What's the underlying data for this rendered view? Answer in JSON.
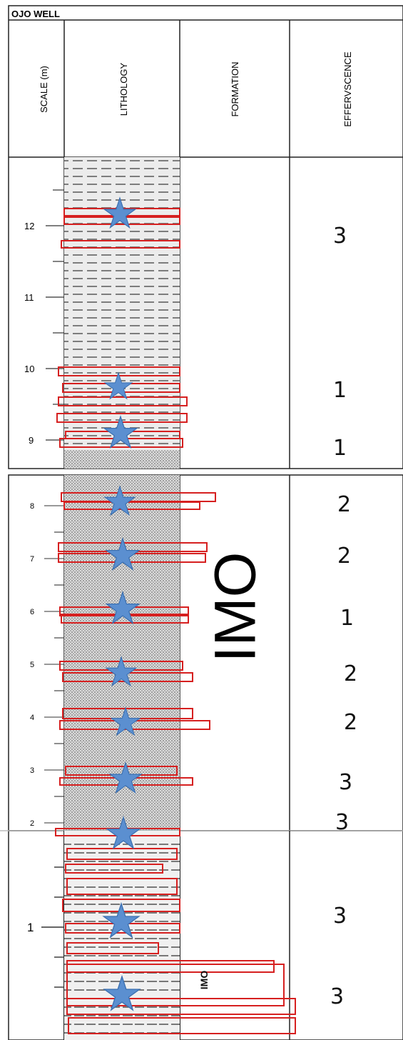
{
  "title": "OJO WELL",
  "headers": {
    "scale": "SCALE (m)",
    "lithology": "LITHOLOGY",
    "formation": "FORMATION",
    "effervescence": "EFFERVSCENCE"
  },
  "formation_big": "IMO",
  "formation_small": "IMO",
  "segments": [
    {
      "name": "upper",
      "ticks": [
        {
          "label": "12"
        },
        {
          "label": "11"
        },
        {
          "label": "10"
        },
        {
          "label": "9"
        }
      ]
    },
    {
      "name": "middle",
      "ticks": [
        {
          "label": "8"
        },
        {
          "label": "7"
        },
        {
          "label": "6"
        },
        {
          "label": "5"
        },
        {
          "label": "4"
        },
        {
          "label": "3"
        },
        {
          "label": "2"
        }
      ]
    },
    {
      "name": "lower",
      "ticks": [
        {
          "label": "1"
        }
      ]
    }
  ],
  "effervescence_values": [
    "3",
    "1",
    "1",
    "2",
    "2",
    "1",
    "2",
    "2",
    "3",
    "3",
    "3",
    "3"
  ],
  "colors": {
    "sample_box": "#d62020",
    "star": "#5b8fd0",
    "star_stroke": "#3a6fb0",
    "lithology_bg": "#e9e9e9",
    "border": "#222222"
  },
  "icons": {
    "sample": "star-icon",
    "dash": "shale-dash-pattern",
    "dot": "sand-dot-pattern"
  }
}
